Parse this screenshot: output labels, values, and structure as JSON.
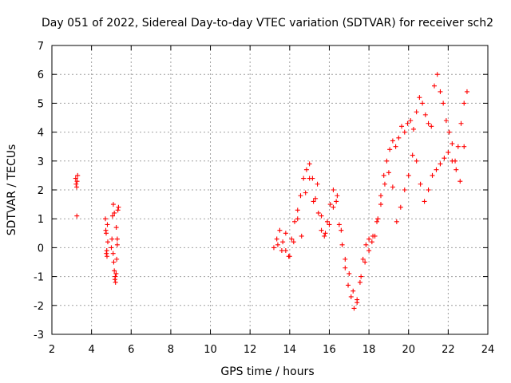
{
  "chart_data": {
    "type": "scatter",
    "title": "Day 051 of 2022, Sidereal Day-to-day VTEC variation (SDTVAR) for receiver sch2",
    "xlabel": "GPS time / hours",
    "ylabel": "SDTVAR / TECUs",
    "xlim": [
      2,
      24
    ],
    "ylim": [
      -3,
      7
    ],
    "xticks": [
      2,
      4,
      6,
      8,
      10,
      12,
      14,
      16,
      18,
      20,
      22,
      24
    ],
    "yticks": [
      -3,
      -2,
      -1,
      0,
      1,
      2,
      3,
      4,
      5,
      6,
      7
    ],
    "grid": true,
    "marker": "+",
    "color": "#ff0000",
    "series": [
      {
        "name": "SDTVAR",
        "x": [
          3.2,
          3.22,
          3.25,
          3.27,
          3.3,
          3.26,
          4.7,
          4.72,
          4.75,
          4.78,
          4.8,
          4.74,
          4.77,
          4.82,
          5.0,
          5.03,
          5.06,
          5.09,
          5.12,
          5.15,
          5.18,
          5.21,
          5.24,
          5.27,
          5.3,
          5.33,
          5.36,
          5.2,
          5.25,
          5.3,
          5.1,
          5.15,
          13.2,
          13.35,
          13.5,
          13.65,
          13.8,
          13.95,
          14.1,
          14.25,
          14.4,
          14.55,
          14.7,
          14.85,
          15.0,
          15.15,
          15.3,
          15.45,
          15.6,
          15.75,
          15.9,
          16.05,
          16.2,
          16.35,
          16.5,
          16.65,
          16.8,
          16.95,
          17.1,
          17.25,
          17.4,
          17.55,
          17.7,
          17.85,
          18.0,
          18.15,
          18.3,
          18.45,
          18.6,
          18.75,
          18.9,
          19.05,
          19.2,
          19.35,
          19.5,
          19.65,
          19.8,
          19.95,
          20.1,
          20.25,
          20.4,
          20.55,
          20.7,
          20.85,
          21.0,
          21.15,
          21.3,
          21.45,
          21.6,
          21.75,
          21.9,
          22.05,
          22.2,
          22.35,
          22.5,
          22.65,
          22.8,
          22.95,
          13.4,
          13.6,
          13.8,
          14.0,
          14.2,
          14.4,
          14.6,
          14.8,
          15.0,
          15.2,
          15.4,
          15.6,
          15.8,
          16.0,
          16.2,
          16.4,
          16.6,
          16.8,
          17.0,
          17.2,
          17.4,
          17.6,
          17.8,
          18.0,
          18.2,
          18.4,
          18.6,
          18.8,
          19.0,
          19.2,
          19.4,
          19.6,
          19.8,
          20.0,
          20.2,
          20.4,
          20.6,
          20.8,
          21.0,
          21.2,
          21.4,
          21.6,
          21.8,
          22.0,
          22.2,
          22.4,
          22.6,
          22.8
        ],
        "y": [
          2.4,
          2.2,
          2.1,
          2.3,
          2.5,
          1.1,
          1.0,
          0.6,
          -0.2,
          -0.3,
          0.8,
          0.5,
          -0.1,
          0.2,
          0.0,
          0.3,
          1.1,
          -0.2,
          -0.5,
          -0.8,
          -1.1,
          -1.2,
          -0.9,
          -0.4,
          0.1,
          1.3,
          1.4,
          -1.0,
          0.7,
          0.3,
          1.5,
          1.2,
          0.0,
          0.3,
          0.6,
          0.2,
          -0.1,
          -0.3,
          0.3,
          0.9,
          1.3,
          1.8,
          2.4,
          2.7,
          2.9,
          2.4,
          1.7,
          1.2,
          0.6,
          0.4,
          0.9,
          1.5,
          2.0,
          1.6,
          0.8,
          0.1,
          -0.7,
          -1.3,
          -1.7,
          -2.1,
          -1.9,
          -1.2,
          -0.4,
          0.1,
          0.3,
          0.2,
          0.4,
          1.0,
          1.8,
          2.5,
          3.0,
          3.4,
          3.7,
          3.5,
          3.8,
          4.2,
          4.0,
          4.3,
          4.4,
          4.1,
          4.7,
          5.2,
          5.0,
          4.6,
          4.3,
          4.2,
          5.6,
          6.0,
          5.4,
          5.0,
          4.4,
          4.0,
          3.6,
          3.0,
          3.5,
          4.3,
          5.0,
          5.4,
          0.1,
          -0.1,
          0.5,
          -0.3,
          0.2,
          1.0,
          0.4,
          1.9,
          2.4,
          1.6,
          2.2,
          1.1,
          0.5,
          0.8,
          1.4,
          1.8,
          0.6,
          -0.4,
          -0.9,
          -1.5,
          -1.8,
          -1.0,
          -0.5,
          -0.1,
          0.4,
          0.9,
          1.5,
          2.2,
          2.6,
          2.1,
          0.9,
          1.4,
          2.0,
          2.5,
          3.2,
          3.0,
          2.2,
          1.6,
          2.0,
          2.5,
          2.7,
          2.9,
          3.1,
          3.3,
          3.0,
          2.7,
          2.3,
          3.5
        ]
      }
    ]
  }
}
